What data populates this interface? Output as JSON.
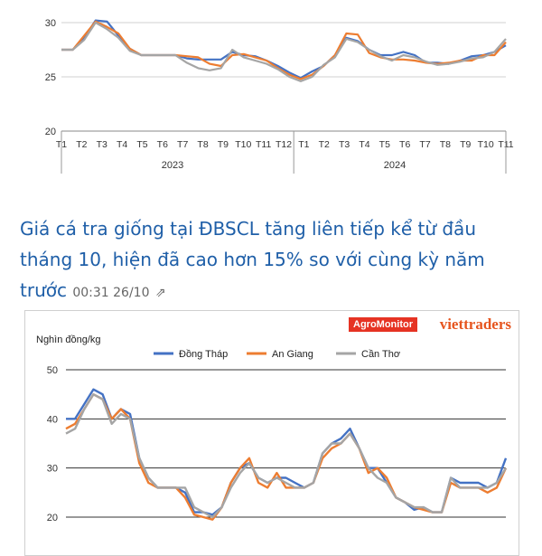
{
  "chart_data": [
    {
      "type": "line",
      "yticks": [
        "30",
        "25",
        "20"
      ],
      "ylim": [
        20,
        30
      ],
      "x_month_labels": [
        "T1",
        "T2",
        "T3",
        "T4",
        "T5",
        "T6",
        "T7",
        "T8",
        "T9",
        "T10",
        "T11",
        "T12",
        "T1",
        "T2",
        "T3",
        "T4",
        "T5",
        "T6",
        "T7",
        "T8",
        "T9",
        "T10",
        "T11"
      ],
      "year_labels": [
        "2023",
        "2024"
      ],
      "grid": true,
      "series": [
        {
          "color": "#4472c4",
          "values": [
            27.5,
            27.5,
            28.6,
            30.2,
            30.1,
            28.8,
            27.6,
            27,
            27,
            27,
            27,
            26.7,
            26.6,
            26.6,
            26.6,
            27.3,
            27,
            26.9,
            26.5,
            26,
            25.4,
            24.9,
            25.5,
            26,
            27,
            28.6,
            28.3,
            27.5,
            27,
            27,
            27.3,
            27,
            26.3,
            26.3,
            26.2,
            26.5,
            26.9,
            27,
            27.3,
            27.9
          ]
        },
        {
          "color": "#ed7d31",
          "values": [
            27.5,
            27.5,
            28.8,
            30.1,
            29.6,
            29,
            27.6,
            27,
            27,
            27,
            27,
            26.9,
            26.8,
            26.2,
            26,
            27,
            27.1,
            26.8,
            26.5,
            25.8,
            25.2,
            24.8,
            25.2,
            26,
            27,
            29,
            28.9,
            27.2,
            26.8,
            26.6,
            26.6,
            26.5,
            26.3,
            26.2,
            26.3,
            26.5,
            26.5,
            27,
            27,
            28.2
          ]
        },
        {
          "color": "#a5a5a5",
          "values": [
            27.5,
            27.5,
            28.4,
            30,
            29.4,
            28.6,
            27.4,
            27,
            27,
            27,
            27,
            26.3,
            25.8,
            25.6,
            25.8,
            27.5,
            26.8,
            26.5,
            26.2,
            25.7,
            25,
            24.6,
            25,
            26.1,
            26.8,
            28.5,
            28.2,
            27.5,
            26.9,
            26.5,
            27,
            26.8,
            26.4,
            26.1,
            26.2,
            26.4,
            26.7,
            26.8,
            27.3,
            28.5
          ]
        }
      ]
    },
    {
      "type": "line",
      "ylabel": "Nghìn đồng/kg",
      "yticks": [
        "50",
        "40",
        "30",
        "20"
      ],
      "ylim": [
        20,
        50
      ],
      "grid": true,
      "legend_position": "top",
      "series": [
        {
          "name": "Đồng Tháp",
          "color": "#4472c4",
          "values": [
            40,
            40,
            43,
            46,
            45,
            40,
            42,
            41,
            32,
            28,
            26,
            26,
            26,
            25,
            21,
            21,
            20.5,
            22,
            27,
            30,
            31,
            28,
            27,
            28,
            28,
            27,
            26,
            27,
            33,
            35,
            36,
            38,
            34,
            30,
            30,
            27,
            24,
            23,
            21.5,
            22,
            21,
            21,
            28,
            27,
            27,
            27,
            26,
            27,
            32
          ]
        },
        {
          "name": "An Giang",
          "color": "#ed7d31",
          "values": [
            38,
            39,
            42,
            45,
            44,
            40,
            42,
            40,
            31,
            27,
            26,
            26,
            26,
            24,
            20.5,
            20,
            19.5,
            22,
            27,
            30,
            32,
            27,
            26,
            29,
            26,
            26,
            26,
            27,
            32,
            34,
            35,
            37,
            34,
            29,
            30,
            28,
            24,
            23,
            22,
            21.5,
            21,
            21,
            27,
            26,
            26,
            26,
            25,
            26,
            30
          ]
        },
        {
          "name": "Cần Thơ",
          "color": "#a5a5a5",
          "values": [
            37,
            38,
            42,
            45,
            44,
            39,
            41,
            40,
            32,
            28,
            26,
            26,
            26,
            26,
            22,
            21,
            20,
            22,
            26,
            29,
            31,
            28,
            27,
            28,
            27,
            26,
            26,
            27,
            33,
            35,
            35,
            37,
            34,
            30,
            28,
            27,
            24,
            23,
            22,
            22,
            21,
            21,
            28,
            26,
            26,
            26,
            26,
            27,
            30
          ]
        }
      ]
    }
  ],
  "article": {
    "title": "Giá cá tra giống tại ĐBSCL tăng liên tiếp kể từ đầu tháng 10, hiện đã cao hơn 15% so với cùng kỳ năm trước",
    "timestamp": "00:31 26/10"
  },
  "brand": {
    "agromonitor": "AgroMonitor",
    "viettraders": "viettraders"
  }
}
